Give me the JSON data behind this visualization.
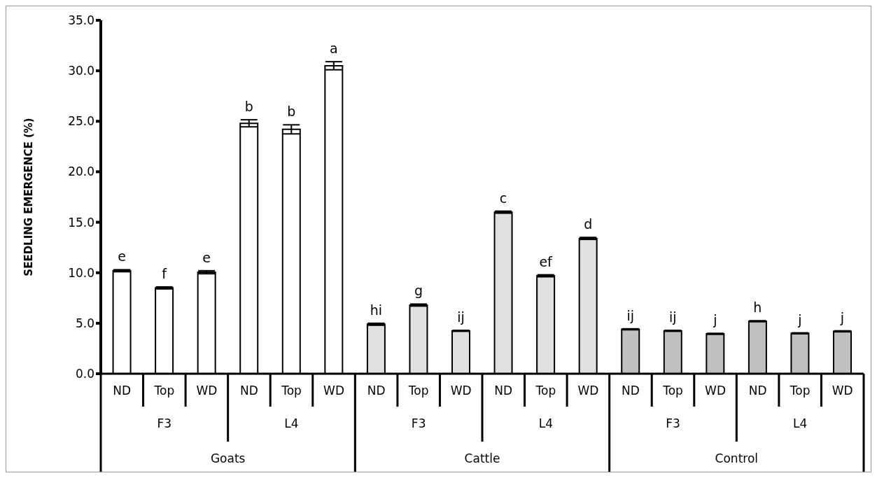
{
  "chart_data": {
    "type": "bar",
    "ylabel": "SEEDLING EMERGENCE (%)",
    "categories": [
      "ND",
      "Top",
      "WD",
      "ND",
      "Top",
      "WD",
      "ND",
      "Top",
      "WD",
      "ND",
      "Top",
      "WD",
      "ND",
      "Top",
      "WD",
      "ND",
      "Top",
      "WD"
    ],
    "annotations": [
      "F3",
      "L4",
      "F3",
      "L4",
      "F3",
      "L4",
      "Goats",
      "Cattle",
      "Control"
    ],
    "values": [
      10.2,
      8.5,
      10.05,
      24.8,
      24.2,
      30.5,
      4.9,
      6.8,
      4.25,
      16.0,
      9.7,
      13.4,
      4.4,
      4.25,
      3.95,
      5.2,
      4.0,
      4.2
    ],
    "errors": [
      0.1,
      0.1,
      0.15,
      0.35,
      0.45,
      0.4,
      0.1,
      0.1,
      0.05,
      0.1,
      0.1,
      0.1,
      0.05,
      0.05,
      0.05,
      0.05,
      0.05,
      0.05
    ],
    "value_labels": [
      "e",
      "f",
      "e",
      "b",
      "b",
      "a",
      "hi",
      "g",
      "ij",
      "c",
      "ef",
      "d",
      "ij",
      "ij",
      "j",
      "h",
      "j",
      "j"
    ],
    "colors": [
      "#ffffff",
      "#ffffff",
      "#ffffff",
      "#ffffff",
      "#ffffff",
      "#ffffff",
      "#e0e0e0",
      "#e0e0e0",
      "#e0e0e0",
      "#e0e0e0",
      "#e0e0e0",
      "#e0e0e0",
      "#c0c0c0",
      "#c0c0c0",
      "#c0c0c0",
      "#c0c0c0",
      "#c0c0c0",
      "#c0c0c0"
    ],
    "ylim": [
      0,
      35
    ],
    "yticks": [
      {
        "value": 0,
        "label": "0.0"
      },
      {
        "value": 5,
        "label": "5.0"
      },
      {
        "value": 10,
        "label": "10.0"
      },
      {
        "value": 15,
        "label": "15.0"
      },
      {
        "value": 20,
        "label": "20.0"
      },
      {
        "value": 25,
        "label": "25.0"
      },
      {
        "value": 30,
        "label": "30.0"
      },
      {
        "value": 35,
        "label": "35.0"
      }
    ],
    "legend": false,
    "grid": false
  }
}
